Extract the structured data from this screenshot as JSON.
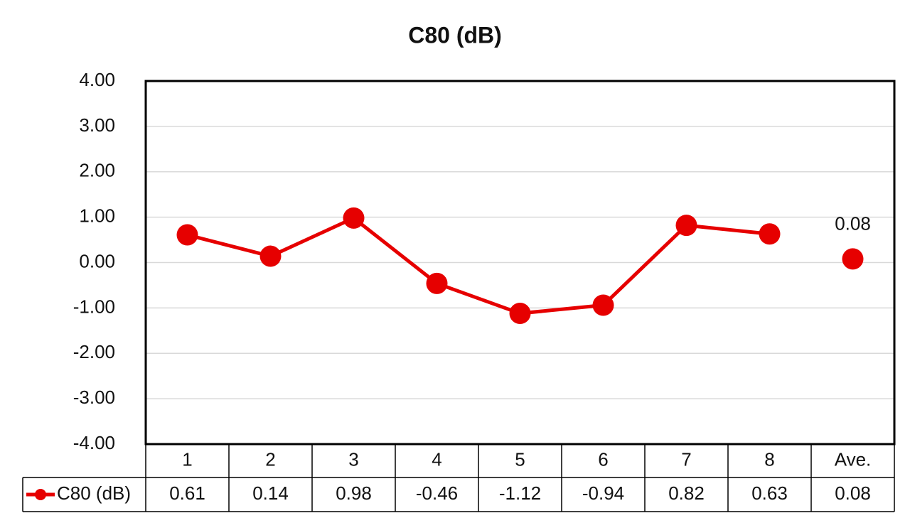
{
  "chart_data": {
    "type": "line",
    "title": "C80 (dB)",
    "categories": [
      "1",
      "2",
      "3",
      "4",
      "5",
      "6",
      "7",
      "8",
      "Ave."
    ],
    "series": [
      {
        "name": "C80 (dB)",
        "color": "#e60000",
        "values": [
          0.61,
          0.14,
          0.98,
          -0.46,
          -1.12,
          -0.94,
          0.82,
          0.63,
          0.08
        ]
      }
    ],
    "last_point_separate": true,
    "ylim": [
      -4,
      4
    ],
    "yticks": [
      {
        "value": -4,
        "label": "-4.00"
      },
      {
        "value": -3,
        "label": "-3.00"
      },
      {
        "value": -2,
        "label": "-2.00"
      },
      {
        "value": -1,
        "label": "-1.00"
      },
      {
        "value": 0,
        "label": "0.00"
      },
      {
        "value": 1,
        "label": "1.00"
      },
      {
        "value": 2,
        "label": "2.00"
      },
      {
        "value": 3,
        "label": "3.00"
      },
      {
        "value": 4,
        "label": "4.00"
      }
    ],
    "grid": true,
    "data_table": true
  }
}
